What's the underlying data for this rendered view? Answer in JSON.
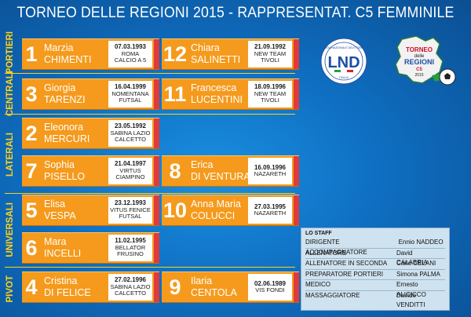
{
  "title": "TORNEO DELLE REGIONI 2015 - RAPPRESENTAT. C5 FEMMINILE",
  "categories": {
    "portieri": "PORTIERI",
    "centrali": "CENTRALI",
    "laterali": "LATERALI",
    "universali": "UNIVERSALI",
    "pivot": "PIVOT"
  },
  "players": [
    {
      "number": "1",
      "first": "Marzia",
      "last": "CHIMENTI",
      "dob": "07.03.1993",
      "club1": "ROMA",
      "club2": "CALCIO A 5"
    },
    {
      "number": "12",
      "first": "Chiara",
      "last": "SALINETTI",
      "dob": "21.09.1992",
      "club1": "NEW TEAM",
      "club2": "TIVOLI"
    },
    {
      "number": "3",
      "first": "Giorgia",
      "last": "TARENZI",
      "dob": "16.04.1999",
      "club1": "NOMENTANA",
      "club2": "FUTSAL"
    },
    {
      "number": "11",
      "first": "Francesca",
      "last": "LUCENTINI",
      "dob": "18.09.1996",
      "club1": "NEW TEAM",
      "club2": "TIVOLI"
    },
    {
      "number": "2",
      "first": "Eleonora",
      "last": "MERCURI",
      "dob": "23.05.1992",
      "club1": "SABINA LAZIO",
      "club2": "CALCETTO"
    },
    {
      "number": "7",
      "first": "Sophia",
      "last": "PISELLO",
      "dob": "21.04.1997",
      "club1": "VIRTUS",
      "club2": "CIAMPINO"
    },
    {
      "number": "8",
      "first": "Erica",
      "last": "DI VENTURA",
      "dob": "16.09.1996",
      "club1": "NAZARETH",
      "club2": ""
    },
    {
      "number": "5",
      "first": "Elisa",
      "last": "VESPA",
      "dob": "23.12.1993",
      "club1": "VITUS FENICE",
      "club2": "FUTSAL"
    },
    {
      "number": "10",
      "first": "Anna Maria",
      "last": "COLUCCI",
      "dob": "27.03.1995",
      "club1": "NAZARETH",
      "club2": ""
    },
    {
      "number": "6",
      "first": "Mara",
      "last": "INCELLI",
      "dob": "11.02.1995",
      "club1": "BELLATOR",
      "club2": "FRUSINO"
    },
    {
      "number": "4",
      "first": "Cristina",
      "last": "DI FELICE",
      "dob": "27.02.1996",
      "club1": "SABINA LAZIO",
      "club2": "CALCETTO"
    },
    {
      "number": "9",
      "first": "Ilaria",
      "last": "CENTOLA",
      "dob": "02.06.1989",
      "club1": "VIS FONDI",
      "club2": ""
    }
  ],
  "staff": {
    "heading": "LO STAFF",
    "rows": [
      {
        "role": "DIRIGENTE ACCOMPAGNATORE",
        "name": "Ennio NADDEO"
      },
      {
        "role": "ALLENATORE",
        "name": "David CALABRIA"
      },
      {
        "role": "ALLENATORE IN SECONDA",
        "name": "Carlo CELANI"
      },
      {
        "role": "PREPARATORE PORTIERI",
        "name": "Simona PALMA"
      },
      {
        "role": "MEDICO",
        "name": "Ernesto ALICICCO"
      },
      {
        "role": "MASSAGGIATORE",
        "name": "Davide VENDITTI"
      }
    ]
  },
  "logos": {
    "lnd_text": "LND",
    "lnd_small": "LEGA NAZIONALE DILETTANTI",
    "lnd_bottom": "ITALIA",
    "tdr_line1": "TORNEO",
    "tdr_line2": "delle",
    "tdr_line3": "REGIONI",
    "tdr_line4": "C5",
    "tdr_year": "2015"
  },
  "colors": {
    "card": "#f59a1c",
    "accent_stripe": "#e03a3a",
    "category_text": "#ffd21a",
    "background": "#0f6fc2"
  }
}
